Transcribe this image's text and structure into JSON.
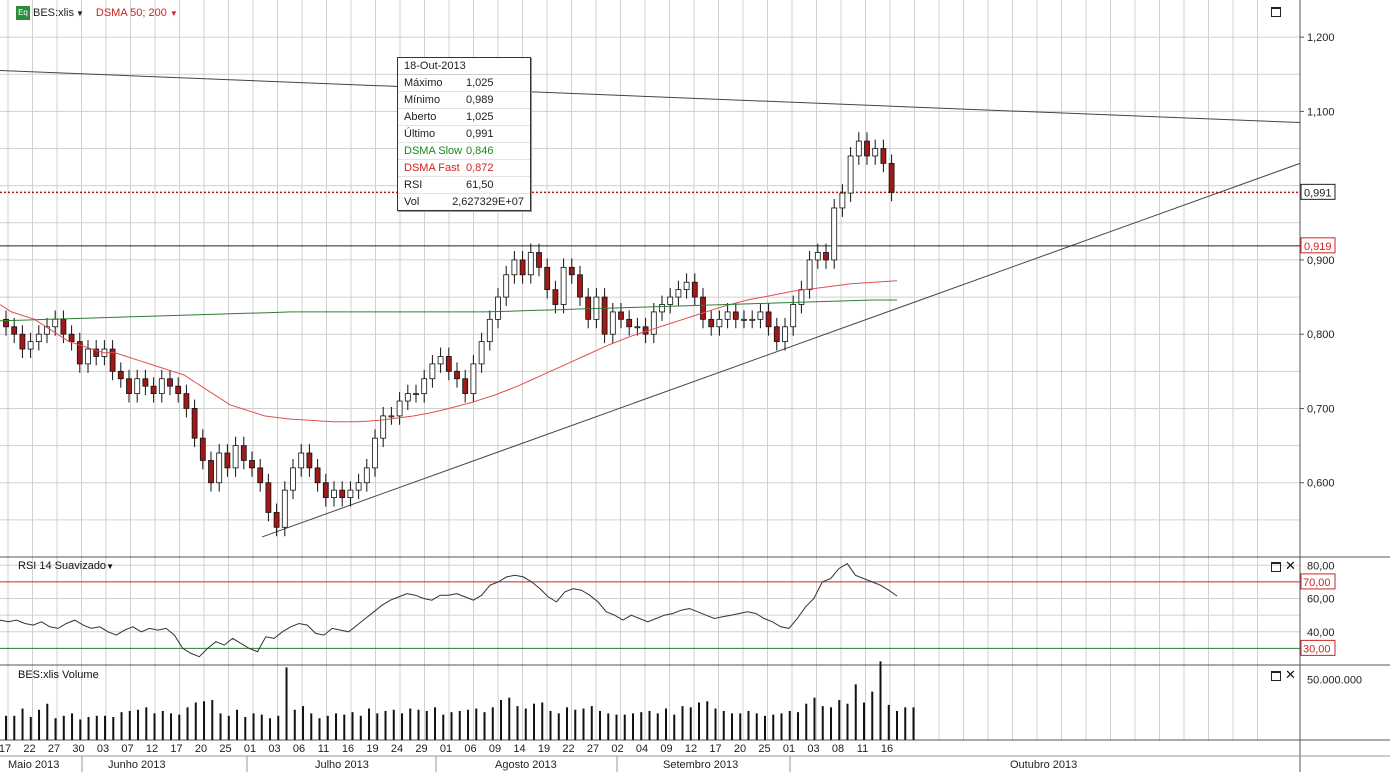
{
  "header": {
    "badge": "Eq",
    "symbol": "BES:xlis",
    "indicator": "DSMA 50; 200"
  },
  "tooltip": {
    "date": "18-Out-2013",
    "rows": [
      {
        "label": "Máximo",
        "value": "1,025",
        "color": "#222222"
      },
      {
        "label": "Mínimo",
        "value": "0,989",
        "color": "#222222"
      },
      {
        "label": "Aberto",
        "value": "1,025",
        "color": "#222222"
      },
      {
        "label": "Último",
        "value": "0,991",
        "color": "#222222"
      },
      {
        "label": "DSMA Slow",
        "value": "0,846",
        "color": "#1a8a1a"
      },
      {
        "label": "DSMA Fast",
        "value": "0,872",
        "color": "#d42020"
      },
      {
        "label": "RSI",
        "value": "61,50",
        "color": "#222222"
      },
      {
        "label": "Vol",
        "value": "2,627329E+07",
        "color": "#222222"
      }
    ]
  },
  "rsi_panel": {
    "title": "RSI 14 Suavizado"
  },
  "volume_panel": {
    "title": "BES:xlis Volume"
  },
  "chart_data": [
    {
      "type": "candlestick",
      "title": "BES:xlis",
      "y_ticks": [
        "1,200",
        "1,100",
        "0,900",
        "0,800",
        "0,700",
        "0,600"
      ],
      "y_tick_values": [
        1.2,
        1.1,
        0.9,
        0.8,
        0.7,
        0.6
      ],
      "ylim": [
        0.5,
        1.25
      ],
      "last_price_label": "0,991",
      "last_price": 0.991,
      "support_label": "0,919",
      "support_level": 0.919,
      "day_labels": [
        "17",
        "22",
        "27",
        "30",
        "03",
        "07",
        "12",
        "17",
        "20",
        "25",
        "01",
        "03",
        "06",
        "11",
        "16",
        "19",
        "24",
        "29",
        "01",
        "06",
        "09",
        "14",
        "19",
        "22",
        "27",
        "02",
        "04",
        "09",
        "12",
        "17",
        "20",
        "25",
        "01",
        "03",
        "08",
        "11",
        "16"
      ],
      "month_labels": [
        "Maio 2013",
        "Junho 2013",
        "Julho 2013",
        "Agosto 2013",
        "Setembro 2013",
        "Outubro 2013"
      ],
      "close": [
        0.81,
        0.8,
        0.78,
        0.79,
        0.8,
        0.81,
        0.82,
        0.8,
        0.79,
        0.76,
        0.78,
        0.77,
        0.78,
        0.75,
        0.74,
        0.72,
        0.74,
        0.73,
        0.72,
        0.74,
        0.73,
        0.72,
        0.7,
        0.66,
        0.63,
        0.6,
        0.64,
        0.62,
        0.65,
        0.63,
        0.62,
        0.6,
        0.56,
        0.54,
        0.59,
        0.62,
        0.64,
        0.62,
        0.6,
        0.58,
        0.59,
        0.58,
        0.59,
        0.6,
        0.62,
        0.66,
        0.69,
        0.69,
        0.71,
        0.72,
        0.72,
        0.74,
        0.76,
        0.77,
        0.75,
        0.74,
        0.72,
        0.76,
        0.79,
        0.82,
        0.85,
        0.88,
        0.9,
        0.88,
        0.91,
        0.89,
        0.86,
        0.84,
        0.89,
        0.88,
        0.85,
        0.82,
        0.85,
        0.8,
        0.83,
        0.82,
        0.81,
        0.81,
        0.8,
        0.83,
        0.84,
        0.85,
        0.86,
        0.87,
        0.85,
        0.82,
        0.81,
        0.82,
        0.83,
        0.82,
        0.82,
        0.82,
        0.83,
        0.81,
        0.79,
        0.81,
        0.84,
        0.86,
        0.9,
        0.91,
        0.9,
        0.97,
        0.99,
        1.04,
        1.06,
        1.04,
        1.05,
        1.03,
        0.991
      ],
      "dsma_fast": [
        0.84,
        0.83,
        0.825,
        0.82,
        0.81,
        0.8,
        0.79,
        0.785,
        0.78,
        0.775,
        0.775,
        0.77,
        0.765,
        0.76,
        0.755,
        0.75,
        0.745,
        0.735,
        0.725,
        0.715,
        0.705,
        0.7,
        0.695,
        0.69,
        0.688,
        0.686,
        0.685,
        0.684,
        0.683,
        0.682,
        0.682,
        0.682,
        0.683,
        0.684,
        0.686,
        0.688,
        0.69,
        0.693,
        0.696,
        0.7,
        0.704,
        0.708,
        0.713,
        0.718,
        0.724,
        0.73,
        0.737,
        0.744,
        0.751,
        0.758,
        0.765,
        0.772,
        0.779,
        0.786,
        0.792,
        0.798,
        0.803,
        0.808,
        0.813,
        0.818,
        0.823,
        0.828,
        0.833,
        0.838,
        0.842,
        0.846,
        0.849,
        0.852,
        0.855,
        0.858,
        0.86,
        0.862,
        0.864,
        0.866,
        0.868,
        0.869,
        0.87,
        0.871,
        0.872
      ],
      "dsma_slow": [
        0.818,
        0.819,
        0.82,
        0.821,
        0.822,
        0.823,
        0.824,
        0.825,
        0.826,
        0.827,
        0.828,
        0.829,
        0.83,
        0.83,
        0.83,
        0.83,
        0.83,
        0.83,
        0.83,
        0.83,
        0.83,
        0.831,
        0.832,
        0.833,
        0.834,
        0.835,
        0.836,
        0.837,
        0.838,
        0.839,
        0.84,
        0.841,
        0.842,
        0.843,
        0.844,
        0.845,
        0.846,
        0.846
      ]
    },
    {
      "type": "line",
      "title": "RSI 14 Suavizado",
      "y_ticks": [
        "80,00",
        "60,00",
        "40,00"
      ],
      "y_tick_values": [
        80,
        60,
        40
      ],
      "overbought_label": "70,00",
      "oversold_label": "30,00",
      "overbought": 70,
      "oversold": 30,
      "ylim": [
        20,
        85
      ],
      "values": [
        47,
        46,
        47,
        45,
        44,
        46,
        43,
        42,
        45,
        47,
        44,
        42,
        43,
        40,
        38,
        41,
        43,
        40,
        42,
        41,
        42,
        38,
        30,
        27,
        25,
        30,
        34,
        32,
        36,
        33,
        30,
        28,
        37,
        36,
        40,
        43,
        45,
        44,
        39,
        38,
        42,
        41,
        40,
        44,
        48,
        52,
        56,
        59,
        61,
        63,
        62,
        60,
        59,
        62,
        62,
        63,
        61,
        59,
        62,
        68,
        70,
        73,
        74,
        73,
        70,
        66,
        61,
        58,
        64,
        66,
        65,
        62,
        58,
        52,
        50,
        47,
        50,
        48,
        46,
        48,
        50,
        51,
        53,
        54,
        52,
        50,
        48,
        49,
        50,
        51,
        52,
        51,
        48,
        46,
        43,
        42,
        48,
        55,
        60,
        70,
        72,
        78,
        81,
        74,
        72,
        70,
        68,
        65,
        61.5
      ]
    },
    {
      "type": "bar",
      "title": "BES:xlis Volume",
      "y_ticks": [
        "50.000.000"
      ],
      "y_tick_values": [
        50000000
      ],
      "ylim": [
        0,
        62000000
      ],
      "values": [
        20,
        20,
        26,
        19,
        25,
        30,
        18,
        20,
        22,
        17,
        19,
        20,
        20,
        19,
        23,
        24,
        25,
        27,
        22,
        24,
        22,
        21,
        27,
        31,
        32,
        33,
        22,
        20,
        25,
        19,
        22,
        21,
        18,
        20,
        60,
        25,
        28,
        22,
        18,
        20,
        22,
        21,
        23,
        20,
        26,
        22,
        24,
        25,
        22,
        26,
        25,
        24,
        27,
        21,
        23,
        24,
        25,
        26,
        23,
        27,
        33,
        35,
        28,
        26,
        30,
        31,
        24,
        22,
        27,
        25,
        26,
        28,
        24,
        22,
        21,
        21,
        22,
        23,
        24,
        22,
        26,
        21,
        28,
        27,
        31,
        32,
        26,
        24,
        22,
        22,
        24,
        22,
        20,
        21,
        22,
        24,
        23,
        30,
        35,
        28,
        27,
        33,
        30,
        46,
        31,
        40,
        65,
        29,
        24,
        27,
        27
      ]
    }
  ]
}
